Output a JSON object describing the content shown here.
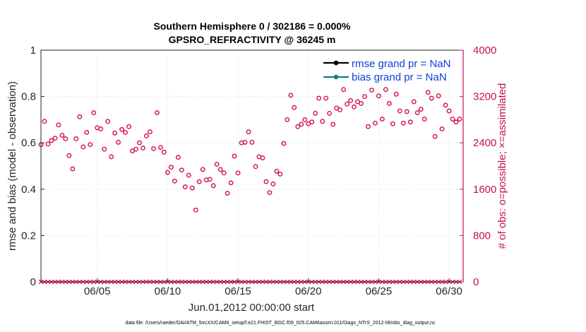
{
  "chart_data": {
    "type": "scatter",
    "title": "Southern Hemisphere 0 / 302186 = 0.000%",
    "subtitle": "GPSRO_REFRACTIVITY @ 36245 m",
    "xlabel": "Jun.01,2012 00:00:00 start",
    "ylabel_left": "rmse and bias (model - observation)",
    "ylabel_right": "# of obs: o=possible; ×=assimilated",
    "footer": "data file: /Users/raeder/DAI/ATM_forcXX/CAM6_setup/f.e21.FHIST_BGC.f09_025.CAM6assim.011/Diags_NTrS_2012-06/obs_diag_output.nc",
    "xlim": [
      1,
      31
    ],
    "ylim_left": [
      0,
      1
    ],
    "ylim_right": [
      0,
      4000
    ],
    "x_ticks": [
      5,
      10,
      15,
      20,
      25,
      30
    ],
    "x_tick_labels": [
      "06/05",
      "06/10",
      "06/15",
      "06/20",
      "06/25",
      "06/30"
    ],
    "y_left_ticks": [
      0,
      0.2,
      0.4,
      0.6,
      0.8,
      1
    ],
    "y_left_tick_labels": [
      "0",
      "0.2",
      "0.4",
      "0.6",
      "0.8",
      "1"
    ],
    "y_right_ticks": [
      0,
      800,
      1600,
      2400,
      3200,
      4000
    ],
    "y_right_tick_labels": [
      "0",
      "800",
      "1600",
      "2400",
      "3200",
      "4000"
    ],
    "legend": [
      {
        "label": "rmse grand pr = NaN",
        "color": "#000000"
      },
      {
        "label": "bias grand pr = NaN",
        "color": "#0f7f80"
      }
    ],
    "legend_position": "top-right",
    "colors": {
      "possible": "#d6145a",
      "assimilated": "#d6145a",
      "left_axis": "#000000",
      "right_axis": "#c40f55"
    },
    "series": [
      {
        "marker": "o",
        "x": [
          1.0,
          1.25,
          1.5,
          1.75,
          2.0,
          2.25,
          2.5,
          2.75,
          3.0,
          3.25,
          3.5,
          3.75,
          4.0,
          4.25,
          4.5,
          4.75,
          5.0,
          5.25,
          5.5,
          5.75,
          6.0,
          6.25,
          6.5,
          6.75,
          7.0,
          7.25,
          7.5,
          7.75,
          8.0,
          8.25,
          8.5,
          8.75,
          9.0,
          9.25,
          9.5,
          9.75,
          10.0,
          10.25,
          10.5,
          10.75,
          11.0,
          11.25,
          11.5,
          11.75,
          12.0,
          12.25,
          12.5,
          12.75,
          13.0,
          13.25,
          13.5,
          13.75,
          14.0,
          14.25,
          14.5,
          14.75,
          15.0,
          15.25,
          15.5,
          15.75,
          16.0,
          16.25,
          16.5,
          16.75,
          17.0,
          17.25,
          17.5,
          17.75,
          18.0,
          18.25,
          18.5,
          18.75,
          19.0,
          19.25,
          19.5,
          19.75,
          20.0,
          20.25,
          20.5,
          20.75,
          21.0,
          21.25,
          21.5,
          21.75,
          22.0,
          22.25,
          22.5,
          22.75,
          23.0,
          23.25,
          23.5,
          23.75,
          24.0,
          24.25,
          24.5,
          24.75,
          25.0,
          25.25,
          25.5,
          25.75,
          26.0,
          26.25,
          26.5,
          26.75,
          27.0,
          27.25,
          27.5,
          27.75,
          28.0,
          28.25,
          28.5,
          28.75,
          29.0,
          29.25,
          29.5,
          29.75,
          30.0,
          30.25,
          30.5,
          30.75
        ],
        "y": [
          2370,
          2770,
          2380,
          2440,
          2480,
          2710,
          2530,
          2470,
          2180,
          1950,
          2470,
          2850,
          2330,
          2580,
          2370,
          2920,
          2660,
          2640,
          2290,
          2770,
          2160,
          2570,
          2410,
          2630,
          2580,
          2680,
          2260,
          2290,
          2400,
          2310,
          2520,
          2590,
          2300,
          2920,
          2320,
          2240,
          1890,
          1980,
          1740,
          2150,
          1930,
          1640,
          1840,
          1620,
          1240,
          1730,
          1940,
          1760,
          1770,
          1660,
          2030,
          1940,
          1880,
          1530,
          1710,
          2170,
          1880,
          2400,
          2410,
          2590,
          2410,
          1990,
          2160,
          2140,
          1730,
          1540,
          1690,
          1910,
          1860,
          2390,
          2800,
          3220,
          3010,
          2680,
          2720,
          2800,
          2730,
          2760,
          2910,
          3170,
          2770,
          3170,
          2910,
          2720,
          3000,
          2970,
          3320,
          3070,
          3130,
          3020,
          3110,
          3080,
          3200,
          2680,
          3310,
          2740,
          3210,
          2810,
          3320,
          3080,
          2730,
          3240,
          2950,
          2740,
          2940,
          2760,
          3110,
          2920,
          2980,
          2810,
          3270,
          3170,
          2510,
          3210,
          2640,
          3050,
          2950,
          2810,
          2760,
          2810
        ],
        "color": "#d6145a"
      },
      {
        "marker": "x",
        "x": [
          1.0,
          1.25,
          1.5,
          1.75,
          2.0,
          2.25,
          2.5,
          2.75,
          3.0,
          3.25,
          3.5,
          3.75,
          4.0,
          4.25,
          4.5,
          4.75,
          5.0,
          5.25,
          5.5,
          5.75,
          6.0,
          6.25,
          6.5,
          6.75,
          7.0,
          7.25,
          7.5,
          7.75,
          8.0,
          8.25,
          8.5,
          8.75,
          9.0,
          9.25,
          9.5,
          9.75,
          10.0,
          10.25,
          10.5,
          10.75,
          11.0,
          11.25,
          11.5,
          11.75,
          12.0,
          12.25,
          12.5,
          12.75,
          13.0,
          13.25,
          13.5,
          13.75,
          14.0,
          14.25,
          14.5,
          14.75,
          15.0,
          15.25,
          15.5,
          15.75,
          16.0,
          16.25,
          16.5,
          16.75,
          17.0,
          17.25,
          17.5,
          17.75,
          18.0,
          18.25,
          18.5,
          18.75,
          19.0,
          19.25,
          19.5,
          19.75,
          20.0,
          20.25,
          20.5,
          20.75,
          21.0,
          21.25,
          21.5,
          21.75,
          22.0,
          22.25,
          22.5,
          22.75,
          23.0,
          23.25,
          23.5,
          23.75,
          24.0,
          24.25,
          24.5,
          24.75,
          25.0,
          25.25,
          25.5,
          25.75,
          26.0,
          26.25,
          26.5,
          26.75,
          27.0,
          27.25,
          27.5,
          27.75,
          28.0,
          28.25,
          28.5,
          28.75,
          29.0,
          29.25,
          29.5,
          29.75,
          30.0,
          30.25,
          30.5,
          30.75
        ],
        "y": [
          0,
          0,
          0,
          0,
          0,
          0,
          0,
          0,
          0,
          0,
          0,
          0,
          0,
          0,
          0,
          0,
          0,
          0,
          0,
          0,
          0,
          0,
          0,
          0,
          0,
          0,
          0,
          0,
          0,
          0,
          0,
          0,
          0,
          0,
          0,
          0,
          0,
          0,
          0,
          0,
          0,
          0,
          0,
          0,
          0,
          0,
          0,
          0,
          0,
          0,
          0,
          0,
          0,
          0,
          0,
          0,
          0,
          0,
          0,
          0,
          0,
          0,
          0,
          0,
          0,
          0,
          0,
          0,
          0,
          0,
          0,
          0,
          0,
          0,
          0,
          0,
          0,
          0,
          0,
          0,
          0,
          0,
          0,
          0,
          0,
          0,
          0,
          0,
          0,
          0,
          0,
          0,
          0,
          0,
          0,
          0,
          0,
          0,
          0,
          0,
          0,
          0,
          0,
          0,
          0,
          0,
          0,
          0,
          0,
          0,
          0,
          0,
          0,
          0,
          0,
          0,
          0,
          0,
          0,
          0
        ],
        "color": "#d6145a"
      }
    ]
  }
}
